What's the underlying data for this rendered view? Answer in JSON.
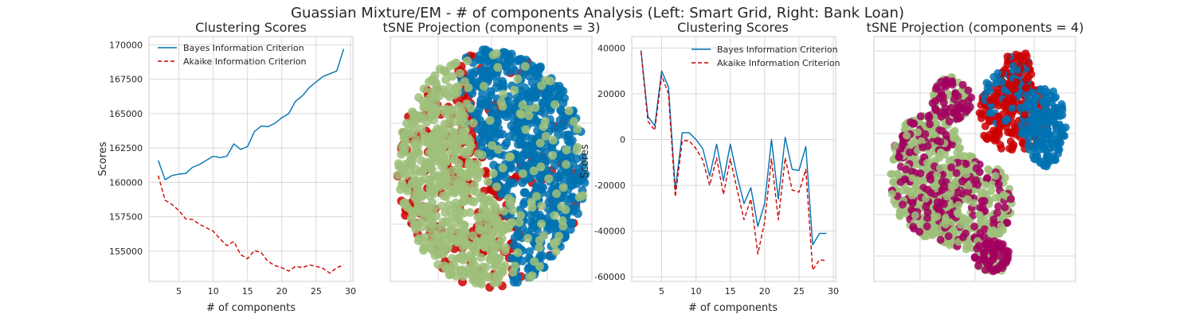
{
  "figure": {
    "suptitle": "Guassian Mixture/EM - # of components Analysis (Left: Smart Grid, Right: Bank Loan)"
  },
  "chart_data": [
    {
      "type": "line",
      "title": "Clustering Scores",
      "xlabel": "# of components",
      "ylabel": "Scores",
      "xlim": [
        0.65,
        30.35
      ],
      "ylim": [
        152800,
        170600
      ],
      "xticks": [
        5,
        10,
        15,
        20,
        25,
        30
      ],
      "yticks": [
        155000,
        157500,
        160000,
        162500,
        165000,
        167500,
        170000
      ],
      "grid": true,
      "legend": "upper left",
      "x": [
        2,
        3,
        4,
        5,
        6,
        7,
        8,
        9,
        10,
        11,
        12,
        13,
        14,
        15,
        16,
        17,
        18,
        19,
        20,
        21,
        22,
        23,
        24,
        25,
        26,
        27,
        28,
        29
      ],
      "series": [
        {
          "name": "Bayes Information Criterion",
          "color": "#0072B2",
          "dash": "solid",
          "values": [
            161600,
            160200,
            160500,
            160600,
            160650,
            161100,
            161300,
            161600,
            161900,
            161800,
            161900,
            162800,
            162400,
            162600,
            163700,
            164100,
            164050,
            164300,
            164700,
            165000,
            165900,
            166300,
            166900,
            167300,
            167700,
            167900,
            168100,
            169700
          ]
        },
        {
          "name": "Akaike Information Criterion",
          "color": "#CC0000",
          "dash": "dashed",
          "values": [
            160500,
            158700,
            158400,
            157950,
            157350,
            157300,
            156950,
            156700,
            156450,
            155900,
            155400,
            155700,
            154750,
            154450,
            155050,
            154900,
            154250,
            153950,
            153800,
            153550,
            153900,
            153800,
            154000,
            153900,
            153750,
            153400,
            153800,
            154000
          ]
        }
      ]
    },
    {
      "type": "scatter",
      "title": "tSNE Projection (components = 3)",
      "xlabel": "",
      "ylabel": "",
      "grid": true,
      "shape": "ellipse",
      "center": [
        0.5,
        0.5
      ],
      "radius": [
        0.47,
        0.49
      ],
      "series": [
        {
          "cluster": 0,
          "color": "#CC0000",
          "region": "background",
          "note_free": true
        },
        {
          "cluster": 1,
          "color": "#0072B2",
          "region": "right"
        },
        {
          "cluster": 2,
          "color": "#9DC07A",
          "region": "left"
        }
      ]
    },
    {
      "type": "line",
      "title": "Clustering Scores",
      "xlabel": "# of components",
      "ylabel": "Scores",
      "xlim": [
        0.65,
        30.35
      ],
      "ylim": [
        -62000,
        45000
      ],
      "xticks": [
        5,
        10,
        15,
        20,
        25,
        30
      ],
      "yticks": [
        -60000,
        -40000,
        -20000,
        0,
        20000,
        40000
      ],
      "grid": true,
      "legend": "upper right",
      "x": [
        2,
        3,
        4,
        5,
        6,
        7,
        8,
        9,
        10,
        11,
        12,
        13,
        14,
        15,
        16,
        17,
        18,
        19,
        20,
        21,
        22,
        23,
        24,
        25,
        26,
        27,
        28,
        29
      ],
      "series": [
        {
          "name": "Bayes Information Criterion",
          "color": "#0072B2",
          "dash": "solid",
          "values": [
            39000,
            10000,
            6000,
            30000,
            23000,
            -22000,
            3000,
            3000,
            0,
            -4000,
            -16000,
            -2000,
            -18000,
            -2000,
            -16000,
            -28000,
            -21000,
            -38000,
            -28000,
            0,
            -26000,
            1000,
            -13000,
            -13500,
            -3000,
            -46000,
            -41000,
            -41000
          ]
        },
        {
          "name": "Akaike Information Criterion",
          "color": "#CC0000",
          "dash": "dashed",
          "values": [
            38500,
            8000,
            4000,
            28000,
            20000,
            -25000,
            -500,
            -500,
            -4000,
            -9000,
            -20000,
            -8000,
            -24000,
            -8500,
            -22000,
            -35000,
            -26000,
            -50000,
            -36000,
            -8500,
            -35000,
            -8000,
            -22000,
            -23000,
            -13000,
            -57000,
            -52500,
            -53000
          ]
        }
      ]
    },
    {
      "type": "scatter",
      "title": "tSNE Projection (components = 4)",
      "xlabel": "",
      "ylabel": "",
      "grid": true,
      "series": [
        {
          "cluster": 0,
          "color": "#9DC07A",
          "region": "left-blob"
        },
        {
          "cluster": 1,
          "color": "#A2005F",
          "region": "left-blob-overlay"
        },
        {
          "cluster": 2,
          "color": "#CC0000",
          "region": "top-right"
        },
        {
          "cluster": 3,
          "color": "#0072B2",
          "region": "right"
        }
      ]
    }
  ]
}
